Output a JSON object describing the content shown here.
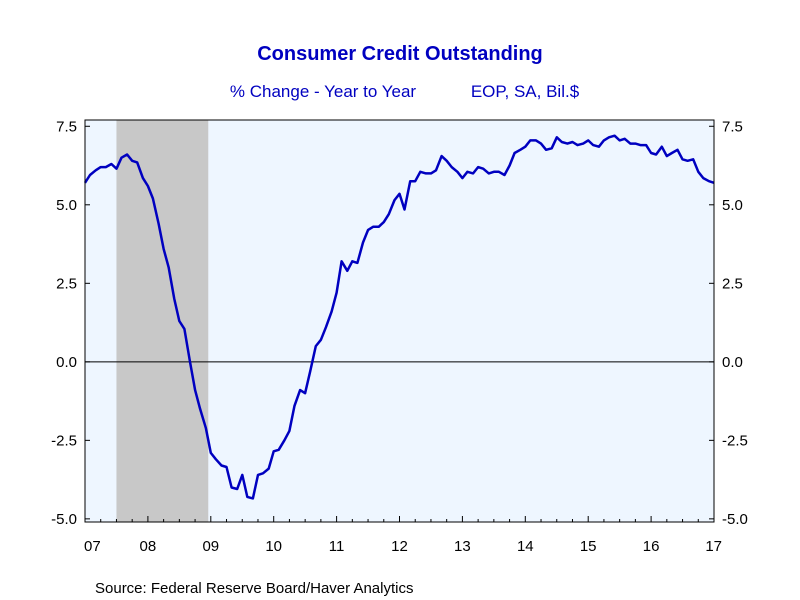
{
  "chart_data": {
    "type": "line",
    "title": "Consumer Credit Outstanding",
    "subtitle_left": "% Change - Year to Year",
    "subtitle_right": "EOP, SA, Bil.$",
    "source": "Source:  Federal Reserve Board/Haver Analytics",
    "x_tick_labels": [
      "07",
      "08",
      "09",
      "10",
      "11",
      "12",
      "13",
      "14",
      "15",
      "16",
      "17"
    ],
    "x_tick_years": [
      2007,
      2008,
      2009,
      2010,
      2011,
      2012,
      2013,
      2014,
      2015,
      2016,
      2017
    ],
    "xlim": [
      2007.0,
      2017.0
    ],
    "y_ticks": [
      7.5,
      5.0,
      2.5,
      0.0,
      -2.5,
      -5.0
    ],
    "y_tick_labels": [
      "7.5",
      "5.0",
      "2.5",
      "0.0",
      "-2.5",
      "-5.0"
    ],
    "ylim": [
      -5.1,
      7.7
    ],
    "recession": {
      "start": 2007.5,
      "end": 2008.96
    },
    "colors": {
      "line": "#0000c0",
      "title": "#0000c0",
      "plot_bg": "#eef6ff",
      "recession": "#c8c8c8"
    },
    "series": [
      {
        "x": [
          2007.0,
          2007.08,
          2007.17,
          2007.25,
          2007.33,
          2007.42,
          2007.5,
          2007.58,
          2007.67,
          2007.75,
          2007.83,
          2007.92,
          2008.0,
          2008.08,
          2008.17,
          2008.25,
          2008.33,
          2008.42,
          2008.5,
          2008.58,
          2008.67,
          2008.75,
          2008.83,
          2008.92,
          2009.0,
          2009.08,
          2009.17,
          2009.25,
          2009.33,
          2009.42,
          2009.5,
          2009.58,
          2009.67,
          2009.75,
          2009.83,
          2009.92,
          2010.0,
          2010.08,
          2010.17,
          2010.25,
          2010.33,
          2010.42,
          2010.5,
          2010.58,
          2010.67,
          2010.75,
          2010.83,
          2010.92,
          2011.0,
          2011.08,
          2011.17,
          2011.25,
          2011.33,
          2011.42,
          2011.5,
          2011.58,
          2011.67,
          2011.75,
          2011.83,
          2011.92,
          2012.0,
          2012.08,
          2012.17,
          2012.25,
          2012.33,
          2012.42,
          2012.5,
          2012.58,
          2012.67,
          2012.75,
          2012.83,
          2012.92,
          2013.0,
          2013.08,
          2013.17,
          2013.25,
          2013.33,
          2013.42,
          2013.5,
          2013.58,
          2013.67,
          2013.75,
          2013.83,
          2013.92,
          2014.0,
          2014.08,
          2014.17,
          2014.25,
          2014.33,
          2014.42,
          2014.5,
          2014.58,
          2014.67,
          2014.75,
          2014.83,
          2014.92,
          2015.0,
          2015.08,
          2015.17,
          2015.25,
          2015.33,
          2015.42,
          2015.5,
          2015.58,
          2015.67,
          2015.75,
          2015.83,
          2015.92,
          2016.0,
          2016.08,
          2016.17,
          2016.25,
          2016.33,
          2016.42,
          2016.5,
          2016.58,
          2016.67,
          2016.75,
          2016.83,
          2016.92,
          2017.0
        ],
        "y": [
          5.7,
          5.95,
          6.1,
          6.2,
          6.2,
          6.3,
          6.15,
          6.5,
          6.6,
          6.4,
          6.35,
          5.85,
          5.6,
          5.2,
          4.4,
          3.6,
          3.0,
          2.0,
          1.3,
          1.05,
          0.0,
          -0.9,
          -1.5,
          -2.1,
          -2.9,
          -3.1,
          -3.3,
          -3.35,
          -4.0,
          -4.05,
          -3.6,
          -4.3,
          -4.35,
          -3.6,
          -3.55,
          -3.4,
          -2.85,
          -2.8,
          -2.5,
          -2.2,
          -1.4,
          -0.9,
          -1.0,
          -0.3,
          0.5,
          0.7,
          1.1,
          1.6,
          2.2,
          3.2,
          2.9,
          3.2,
          3.15,
          3.8,
          4.2,
          4.3,
          4.3,
          4.45,
          4.7,
          5.15,
          5.35,
          4.85,
          5.75,
          5.75,
          6.05,
          6.0,
          6.0,
          6.1,
          6.55,
          6.4,
          6.2,
          6.05,
          5.85,
          6.05,
          6.0,
          6.2,
          6.15,
          6.0,
          6.05,
          6.05,
          5.95,
          6.25,
          6.65,
          6.75,
          6.85,
          7.05,
          7.05,
          6.95,
          6.75,
          6.8,
          7.15,
          7.0,
          6.95,
          7.0,
          6.9,
          6.95,
          7.05,
          6.9,
          6.85,
          7.05,
          7.15,
          7.2,
          7.05,
          7.1,
          6.95,
          6.95,
          6.9,
          6.9,
          6.65,
          6.6,
          6.85,
          6.55,
          6.65,
          6.75,
          6.45,
          6.4,
          6.45,
          6.05,
          5.85,
          5.75,
          5.7
        ]
      }
    ]
  }
}
